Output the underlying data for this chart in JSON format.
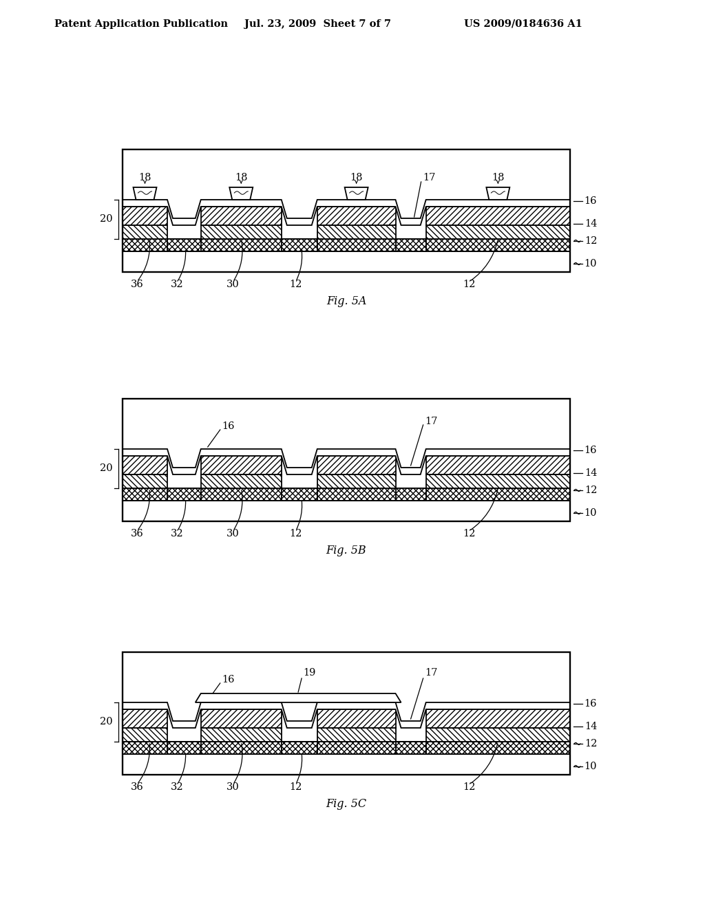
{
  "header_left": "Patent Application Publication",
  "header_mid": "Jul. 23, 2009  Sheet 7 of 7",
  "header_right": "US 2009/0184636 A1",
  "background": "#ffffff",
  "line_color": "#000000",
  "fig_captions": [
    "Fig. 5A",
    "Fig. 5B",
    "Fig. 5C"
  ],
  "ref_fontsize": 10.5,
  "caption_fontsize": 11.5,
  "header_fontsize": 10.5
}
